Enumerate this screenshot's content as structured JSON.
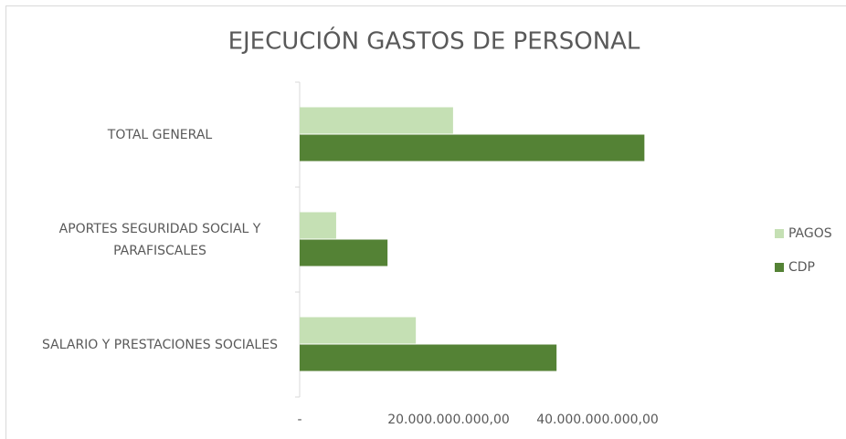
{
  "chart_data": {
    "type": "barh",
    "title": "EJECUCIÓN GASTOS DE PERSONAL",
    "categories": [
      "TOTAL GENERAL",
      "APORTES SEGURIDAD SOCIAL Y PARAFISCALES",
      "SALARIO Y PRESTACIONES SOCIALES"
    ],
    "series": [
      {
        "name": "PAGOS",
        "color": "#c5e0b4",
        "values": [
          20600000000,
          4900000000,
          15600000000
        ]
      },
      {
        "name": "CDP",
        "color": "#548235",
        "values": [
          46300000000,
          11800000000,
          34500000000
        ]
      }
    ],
    "xlim": [
      0,
      60000000000
    ],
    "xticks": [
      {
        "value": 0,
        "label": "-"
      },
      {
        "value": 20000000000,
        "label": "20.000.000.000,00"
      },
      {
        "value": 40000000000,
        "label": "40.000.000.000,00"
      }
    ],
    "grid": false,
    "legend": "right"
  }
}
